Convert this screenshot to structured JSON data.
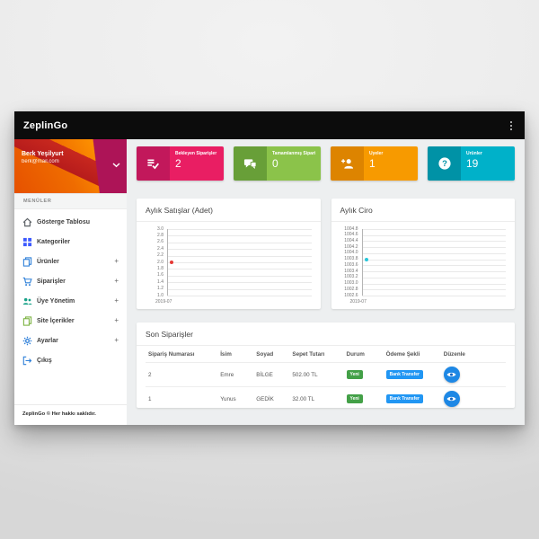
{
  "app": {
    "title": "ZeplinGo"
  },
  "sidebar": {
    "user": {
      "name": "Berk Yeşilyurt",
      "email": "berk@mail.com"
    },
    "section_label": "MENÜLER",
    "expand_glyph": "+",
    "footer": "ZeplinGo © Her hakkı saklıdır.",
    "items": [
      {
        "label": "Gösterge Tablosu",
        "icon": "home",
        "color": "#5c6166",
        "expandable": false
      },
      {
        "label": "Kategoriler",
        "icon": "grid",
        "color": "#3d5afe",
        "expandable": false
      },
      {
        "label": "Ürünler",
        "icon": "pages",
        "color": "#2f80d9",
        "expandable": true
      },
      {
        "label": "Siparişler",
        "icon": "cart",
        "color": "#2f80d9",
        "expandable": true
      },
      {
        "label": "Üye Yönetim",
        "icon": "people",
        "color": "#19a289",
        "expandable": true
      },
      {
        "label": "Site İçerikler",
        "icon": "pages",
        "color": "#7cb342",
        "expandable": true
      },
      {
        "label": "Ayarlar",
        "icon": "gear",
        "color": "#2f80d9",
        "expandable": true
      },
      {
        "label": "Çıkış",
        "icon": "logout",
        "color": "#2f80d9",
        "expandable": false
      }
    ]
  },
  "stats": [
    {
      "label": "Bekleyen Siparişler",
      "value": "2",
      "icon": "list-check",
      "main_color": "#e91e63",
      "dark_color": "#c2185b"
    },
    {
      "label": "Tamamlanmış Siparişler",
      "value": "0",
      "icon": "chat",
      "main_color": "#8bc34a",
      "dark_color": "#689f38"
    },
    {
      "label": "Üyeler",
      "value": "1",
      "icon": "person-add",
      "main_color": "#f79a00",
      "dark_color": "#dd8400"
    },
    {
      "label": "Ürünler",
      "value": "19",
      "icon": "question",
      "main_color": "#00b1c9",
      "dark_color": "#0092a6"
    }
  ],
  "chart_data": [
    {
      "type": "scatter",
      "title": "Aylık Satışlar (Adet)",
      "x": [
        "2019-07"
      ],
      "values": [
        2.0
      ],
      "ylim": [
        1.0,
        3.0
      ],
      "ytick_step": 0.2,
      "point_color": "#e53935",
      "grid": true
    },
    {
      "type": "scatter",
      "title": "Aylık Ciro",
      "x": [
        "2019-07"
      ],
      "values": [
        1003.8
      ],
      "ylim": [
        1002.6,
        1004.8
      ],
      "ytick_step": 0.2,
      "point_color": "#26c6da",
      "grid": true
    }
  ],
  "orders": {
    "title": "Son Siparişler",
    "columns": [
      "Sipariş Numarası",
      "İsim",
      "Soyad",
      "Sepet Tutarı",
      "Durum",
      "Ödeme Şekli",
      "Düzenle"
    ],
    "rows": [
      {
        "order_no": "2",
        "first_name": "Emre",
        "last_name": "BİLGE",
        "total": "502.00 TL",
        "status": "Yeni",
        "payment": "Bank Transfer"
      },
      {
        "order_no": "1",
        "first_name": "Yunus",
        "last_name": "GEDİK",
        "total": "32.00 TL",
        "status": "Yeni",
        "payment": "Bank Transfer"
      }
    ],
    "status_color": "#43a047",
    "payment_color": "#2196f3",
    "edit_button_color": "#1e88e5"
  }
}
